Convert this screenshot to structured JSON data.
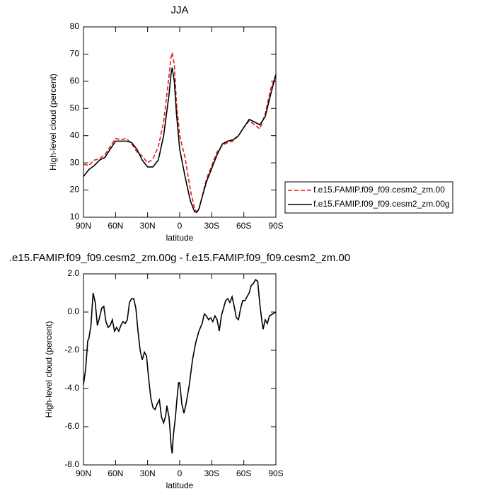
{
  "chart_data": [
    {
      "type": "line",
      "title": "JJA",
      "xlabel": "latitude",
      "ylabel": "High-level cloud (percent)",
      "x": [
        90,
        85,
        80,
        75,
        70,
        65,
        60,
        55,
        50,
        45,
        40,
        35,
        30,
        25,
        20,
        15,
        10,
        8,
        7,
        5,
        3,
        0,
        -5,
        -10,
        -14,
        -16,
        -18,
        -20,
        -25,
        -30,
        -35,
        -40,
        -45,
        -50,
        -55,
        -60,
        -65,
        -70,
        -75,
        -80,
        -85,
        -90
      ],
      "series": [
        {
          "name": "f.e15.FAMIP.f09_f09.cesm2_zm.00",
          "color": "#e41a1c",
          "dashed": true,
          "values": [
            29.5,
            29,
            31,
            31.5,
            33,
            36,
            39,
            38.5,
            39,
            37,
            34,
            32.5,
            30,
            31.5,
            36,
            45,
            62,
            69,
            70.5,
            66,
            52,
            40,
            32,
            20,
            13,
            12,
            13,
            16,
            24,
            29,
            34,
            36.5,
            37.5,
            38,
            40,
            43,
            45.5,
            44,
            42.5,
            48,
            57,
            62.5
          ]
        },
        {
          "name": "f.e15.FAMIP.f09_f09.cesm2_zm.00g",
          "color": "#000000",
          "dashed": false,
          "values": [
            25,
            27.5,
            29,
            31,
            32,
            35,
            38,
            38,
            38,
            37.5,
            35,
            31,
            28.5,
            28.5,
            31,
            40,
            55,
            63,
            65,
            60,
            48,
            35,
            25,
            16,
            12,
            11.8,
            13,
            16,
            23,
            28,
            33,
            37,
            38,
            38.5,
            40,
            43,
            46,
            45,
            44,
            47,
            55,
            62.5
          ]
        }
      ],
      "xlim": [
        90,
        -90
      ],
      "ylim": [
        10,
        80
      ],
      "xticks": [
        {
          "value": 90,
          "label": "90N"
        },
        {
          "value": 60,
          "label": "60N"
        },
        {
          "value": 30,
          "label": "30N"
        },
        {
          "value": 0,
          "label": "0"
        },
        {
          "value": -30,
          "label": "30S"
        },
        {
          "value": -60,
          "label": "60S"
        },
        {
          "value": -90,
          "label": "90S"
        }
      ],
      "yticks": [
        10,
        20,
        30,
        40,
        50,
        60,
        70,
        80
      ],
      "legend": "right"
    },
    {
      "type": "line",
      "title": ".e15.FAMIP.f09_f09.cesm2_zm.00g - f.e15.FAMIP.f09_f09.cesm2_zm.00",
      "xlabel": "latitude",
      "ylabel": "High-level cloud (percent)",
      "x": [
        90,
        88,
        86,
        85,
        83,
        81,
        79,
        77,
        75,
        73,
        71,
        69,
        67,
        65,
        63,
        61,
        59,
        57,
        55,
        53,
        51,
        49,
        47,
        45,
        43,
        41,
        39,
        37,
        35,
        33,
        31,
        29,
        27,
        25,
        23,
        21,
        19,
        17,
        15,
        13,
        12,
        10,
        9,
        8,
        7,
        6,
        4,
        2,
        1,
        0,
        -2,
        -4,
        -6,
        -9,
        -12,
        -15,
        -18,
        -21,
        -23,
        -25,
        -27,
        -29,
        -31,
        -33,
        -35,
        -37,
        -39,
        -41,
        -43,
        -45,
        -47,
        -49,
        -51,
        -53,
        -55,
        -57,
        -59,
        -61,
        -63,
        -65,
        -67,
        -69,
        -71,
        -73,
        -75,
        -77,
        -78,
        -80,
        -82,
        -84,
        -87,
        -90
      ],
      "series": [
        {
          "color": "#000000",
          "dashed": false,
          "values": [
            -3.8,
            -3.0,
            -1.5,
            -1.4,
            -0.7,
            1.0,
            0.5,
            -0.7,
            -0.3,
            0.2,
            0.3,
            -0.5,
            -0.8,
            -0.7,
            -0.4,
            -1.0,
            -0.8,
            -1.0,
            -0.7,
            -0.5,
            -0.6,
            -0.4,
            0.5,
            0.7,
            0.7,
            0.2,
            -1.0,
            -2.0,
            -2.5,
            -2.1,
            -2.3,
            -3.5,
            -4.5,
            -5.0,
            -5.1,
            -4.8,
            -4.6,
            -5.5,
            -5.8,
            -5.4,
            -4.9,
            -5.5,
            -6.2,
            -7.0,
            -7.4,
            -6.5,
            -5.5,
            -4.2,
            -3.7,
            -3.7,
            -4.8,
            -5.3,
            -4.8,
            -3.8,
            -2.5,
            -1.6,
            -1.0,
            -0.6,
            -0.1,
            -0.2,
            -0.4,
            -0.3,
            -0.5,
            -0.2,
            -0.4,
            -1.0,
            -0.2,
            0.2,
            0.6,
            0.7,
            0.5,
            0.8,
            0.3,
            -0.3,
            -0.4,
            0.2,
            0.6,
            0.6,
            0.8,
            1.0,
            1.4,
            1.5,
            1.7,
            1.6,
            0.4,
            -0.5,
            -0.9,
            -0.4,
            -0.6,
            -0.2,
            -0.1,
            0.0
          ]
        }
      ],
      "xlim": [
        90,
        -90
      ],
      "ylim": [
        -8,
        2
      ],
      "xticks": [
        {
          "value": 90,
          "label": "90N"
        },
        {
          "value": 60,
          "label": "60N"
        },
        {
          "value": 30,
          "label": "30N"
        },
        {
          "value": 0,
          "label": "0"
        },
        {
          "value": -30,
          "label": "30S"
        },
        {
          "value": -60,
          "label": "60S"
        },
        {
          "value": -90,
          "label": "90S"
        }
      ],
      "yticks": [
        {
          "value": -8,
          "label": "-8.0"
        },
        {
          "value": -6,
          "label": "-6.0"
        },
        {
          "value": -4,
          "label": "-4.0"
        },
        {
          "value": -2,
          "label": "-2.0"
        },
        {
          "value": 0,
          "label": "0.0"
        },
        {
          "value": 2,
          "label": "2.0"
        }
      ]
    }
  ]
}
